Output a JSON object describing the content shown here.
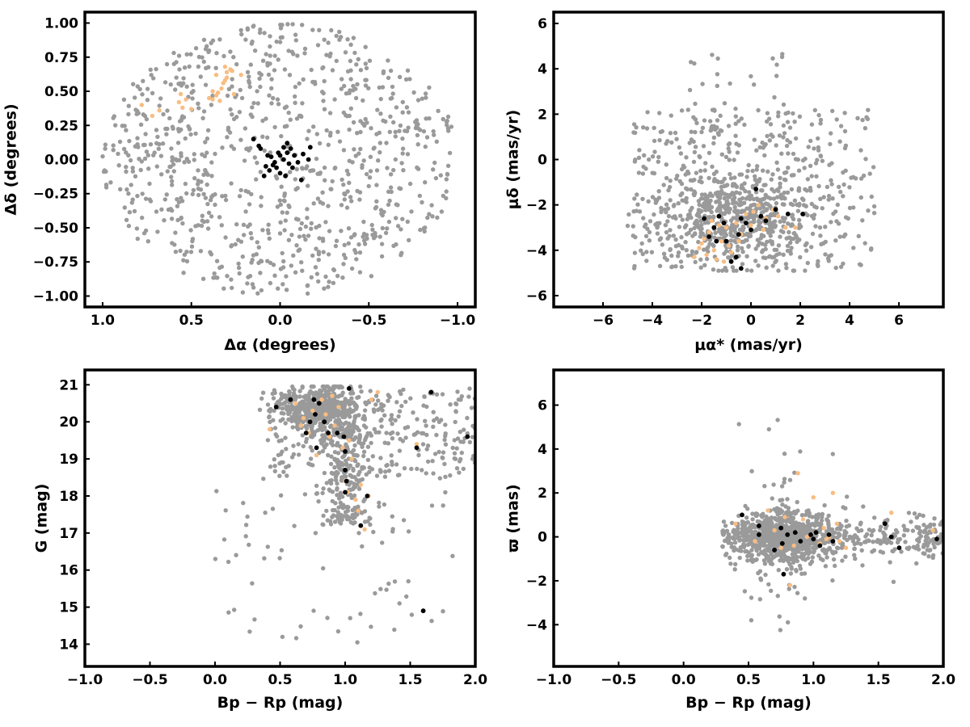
{
  "colors": {
    "field": "#9a9a9a",
    "group_orange": "#f8bd82",
    "group_black": "#000000"
  },
  "chart_data": [
    {
      "type": "scatter",
      "xlabel": "Δα (degrees)",
      "ylabel": "Δδ (degrees)",
      "xlim": [
        1.1,
        -1.1
      ],
      "ylim": [
        -1.08,
        1.08
      ],
      "x_reversed": true,
      "xticks": [
        1.0,
        0.5,
        0.0,
        -0.5,
        -1.0
      ],
      "yticks": [
        -1.0,
        -0.75,
        -0.5,
        -0.25,
        0.0,
        0.25,
        0.5,
        0.75,
        1.0
      ],
      "xtick_labels": [
        "1.0",
        "0.5",
        "0.0",
        "−0.5",
        "−1.0"
      ],
      "ytick_labels": [
        "−1.00",
        "−0.75",
        "−0.50",
        "−0.25",
        "0.00",
        "0.25",
        "0.50",
        "0.75",
        "1.00"
      ],
      "grid": false,
      "series": [
        {
          "color": "#9a9a9a",
          "distribution": "uniform disk",
          "center": [
            0,
            0
          ],
          "radius": 1.0,
          "count": 900
        },
        {
          "color": "#f8bd82",
          "points": [
            [
              0.78,
              0.4
            ],
            [
              0.72,
              0.32
            ],
            [
              0.68,
              0.36
            ],
            [
              0.57,
              0.42
            ],
            [
              0.55,
              0.38
            ],
            [
              0.53,
              0.44
            ],
            [
              0.5,
              0.37
            ],
            [
              0.56,
              0.48
            ],
            [
              0.4,
              0.45
            ],
            [
              0.38,
              0.5
            ],
            [
              0.36,
              0.47
            ],
            [
              0.34,
              0.43
            ],
            [
              0.32,
              0.56
            ],
            [
              0.3,
              0.6
            ],
            [
              0.28,
              0.66
            ],
            [
              0.3,
              0.64
            ],
            [
              0.36,
              0.62
            ],
            [
              0.26,
              0.48
            ],
            [
              0.22,
              0.62
            ],
            [
              0.38,
              0.44
            ],
            [
              0.35,
              0.49
            ],
            [
              0.33,
              0.52
            ],
            [
              0.31,
              0.58
            ],
            [
              0.27,
              0.65
            ],
            [
              0.31,
              0.68
            ]
          ]
        },
        {
          "color": "#000000",
          "points": [
            [
              0.15,
              0.15
            ],
            [
              0.12,
              0.1
            ],
            [
              0.11,
              0.08
            ],
            [
              0.05,
              0.02
            ],
            [
              0.03,
              -0.02
            ],
            [
              0.01,
              0.05
            ],
            [
              -0.02,
              0.0
            ],
            [
              -0.05,
              -0.03
            ],
            [
              0.08,
              -0.05
            ],
            [
              0.06,
              -0.08
            ],
            [
              0.0,
              -0.1
            ],
            [
              -0.03,
              -0.12
            ],
            [
              -0.06,
              0.08
            ],
            [
              -0.08,
              0.03
            ],
            [
              -0.1,
              -0.02
            ],
            [
              -0.13,
              0.04
            ],
            [
              -0.16,
              0.0
            ],
            [
              -0.12,
              -0.15
            ],
            [
              -0.17,
              0.09
            ],
            [
              -0.02,
              0.09
            ],
            [
              0.04,
              -0.04
            ],
            [
              0.07,
              0.03
            ],
            [
              -0.04,
              0.12
            ],
            [
              0.02,
              -0.06
            ],
            [
              0.09,
              -0.12
            ],
            [
              -0.07,
              -0.06
            ],
            [
              0.0,
              0.03
            ],
            [
              -0.04,
              0.05
            ]
          ]
        }
      ]
    },
    {
      "type": "scatter",
      "xlabel": "μα* (mas/yr)",
      "ylabel": "μδ (mas/yr)",
      "xlim": [
        -8,
        7.8
      ],
      "ylim": [
        -6.5,
        6.5
      ],
      "xticks": [
        -6,
        -4,
        -2,
        0,
        2,
        4,
        6
      ],
      "yticks": [
        -6,
        -4,
        -2,
        0,
        2,
        4,
        6
      ],
      "xtick_labels": [
        "−6",
        "−4",
        "−2",
        "0",
        "2",
        "4",
        "6"
      ],
      "ytick_labels": [
        "−6",
        "−4",
        "−2",
        "0",
        "2",
        "4",
        "6"
      ],
      "grid": false,
      "series": [
        {
          "color": "#9a9a9a",
          "distribution": "broad cloud",
          "x_range": [
            -5,
            5
          ],
          "y_range": [
            -4.9,
            4.9
          ],
          "concentration": [
            -0.5,
            -2.0
          ],
          "count": 1000
        },
        {
          "color": "#f8bd82",
          "points": [
            [
              -2.3,
              -4.3
            ],
            [
              -2.1,
              -3.9
            ],
            [
              -1.9,
              -3.5
            ],
            [
              -1.7,
              -3.2
            ],
            [
              -1.5,
              -4.0
            ],
            [
              -1.4,
              -4.4
            ],
            [
              -1.2,
              -3.6
            ],
            [
              -1.0,
              -3.0
            ],
            [
              -0.8,
              -4.1
            ],
            [
              -0.6,
              -2.8
            ],
            [
              -0.4,
              -3.3
            ],
            [
              -0.2,
              -2.4
            ],
            [
              0.0,
              -2.9
            ],
            [
              0.3,
              -2.0
            ],
            [
              0.6,
              -2.6
            ],
            [
              0.9,
              -2.2
            ],
            [
              1.1,
              -2.5
            ],
            [
              1.4,
              -3.0
            ],
            [
              1.8,
              -3.0
            ],
            [
              -1.8,
              -4.2
            ],
            [
              -2.0,
              -3.7
            ],
            [
              -1.3,
              -2.9
            ],
            [
              -0.9,
              -3.8
            ],
            [
              -0.5,
              -3.6
            ],
            [
              0.1,
              -2.3
            ],
            [
              -1.6,
              -2.7
            ],
            [
              -1.1,
              -4.5
            ],
            [
              0.5,
              -3.1
            ]
          ]
        },
        {
          "color": "#000000",
          "points": [
            [
              -1.9,
              -2.6
            ],
            [
              -1.7,
              -3.4
            ],
            [
              -1.5,
              -3.0
            ],
            [
              -1.3,
              -2.5
            ],
            [
              -1.1,
              -2.8
            ],
            [
              -1.0,
              -3.6
            ],
            [
              -0.8,
              -4.5
            ],
            [
              -0.6,
              -4.3
            ],
            [
              -0.5,
              -3.3
            ],
            [
              -0.4,
              -2.6
            ],
            [
              -0.2,
              -2.8
            ],
            [
              0.0,
              -3.1
            ],
            [
              0.2,
              -1.3
            ],
            [
              0.4,
              -2.5
            ],
            [
              0.6,
              -2.7
            ],
            [
              1.0,
              -2.2
            ],
            [
              1.5,
              -2.4
            ],
            [
              2.1,
              -2.4
            ],
            [
              -0.4,
              -4.8
            ],
            [
              -1.4,
              -3.6
            ]
          ]
        }
      ]
    },
    {
      "type": "scatter",
      "xlabel": "Bp − Rp (mag)",
      "ylabel": "G (mag)",
      "xlim": [
        -1.0,
        2.0
      ],
      "ylim": [
        13.4,
        21.4
      ],
      "xticks": [
        -1.0,
        -0.5,
        0.0,
        0.5,
        1.0,
        1.5,
        2.0
      ],
      "yticks": [
        14,
        15,
        16,
        17,
        18,
        19,
        20,
        21
      ],
      "xtick_labels": [
        "−1.0",
        "−0.5",
        "0.0",
        "0.5",
        "1.0",
        "1.5",
        "2.0"
      ],
      "ytick_labels": [
        "14",
        "15",
        "16",
        "17",
        "18",
        "19",
        "20",
        "21"
      ],
      "grid": false,
      "series": [
        {
          "color": "#9a9a9a",
          "distribution": "colour-magnitude diagram",
          "concentration": [
            0.8,
            20.3
          ],
          "count": 1100
        },
        {
          "color": "#f8bd82",
          "points": [
            [
              0.42,
              19.8
            ],
            [
              0.62,
              20.5
            ],
            [
              0.68,
              20.1
            ],
            [
              0.72,
              19.7
            ],
            [
              0.78,
              19.1
            ],
            [
              0.82,
              20.6
            ],
            [
              0.85,
              20.2
            ],
            [
              0.88,
              19.6
            ],
            [
              0.92,
              19.9
            ],
            [
              0.95,
              20.4
            ],
            [
              0.98,
              19.3
            ],
            [
              1.0,
              18.4
            ],
            [
              1.02,
              18.1
            ],
            [
              1.05,
              19.0
            ],
            [
              1.08,
              17.9
            ],
            [
              1.1,
              17.6
            ],
            [
              1.12,
              18.3
            ],
            [
              1.15,
              17.1
            ],
            [
              1.18,
              18.0
            ],
            [
              1.2,
              20.6
            ],
            [
              1.25,
              20.8
            ],
            [
              1.55,
              19.4
            ],
            [
              0.75,
              20.3
            ],
            [
              0.66,
              19.9
            ],
            [
              0.9,
              20.7
            ],
            [
              1.03,
              19.5
            ]
          ]
        },
        {
          "color": "#000000",
          "points": [
            [
              0.47,
              20.4
            ],
            [
              0.58,
              20.6
            ],
            [
              0.7,
              19.7
            ],
            [
              0.73,
              20.0
            ],
            [
              0.76,
              20.6
            ],
            [
              0.77,
              20.2
            ],
            [
              0.78,
              19.3
            ],
            [
              0.8,
              20.5
            ],
            [
              0.84,
              20.0
            ],
            [
              0.87,
              19.7
            ],
            [
              0.94,
              19.7
            ],
            [
              0.99,
              19.6
            ],
            [
              1.0,
              18.7
            ],
            [
              1.0,
              19.2
            ],
            [
              1.03,
              20.9
            ],
            [
              1.0,
              18.1
            ],
            [
              1.12,
              17.2
            ],
            [
              1.17,
              18.0
            ],
            [
              1.55,
              19.3
            ],
            [
              1.6,
              14.9
            ],
            [
              1.66,
              20.8
            ],
            [
              1.94,
              19.6
            ],
            [
              1.01,
              18.4
            ]
          ]
        }
      ]
    },
    {
      "type": "scatter",
      "xlabel": "Bp − Rp (mag)",
      "ylabel": "ϖ (mas)",
      "xlim": [
        -1.0,
        2.0
      ],
      "ylim": [
        -5.9,
        7.6
      ],
      "xticks": [
        -1.0,
        -0.5,
        0.0,
        0.5,
        1.0,
        1.5,
        2.0
      ],
      "yticks": [
        -4,
        -2,
        0,
        2,
        4,
        6
      ],
      "xtick_labels": [
        "−1.0",
        "−0.5",
        "0.0",
        "0.5",
        "1.0",
        "1.5",
        "2.0"
      ],
      "ytick_labels": [
        "−4",
        "−2",
        "0",
        "2",
        "4",
        "6"
      ],
      "grid": false,
      "series": [
        {
          "color": "#9a9a9a",
          "distribution": "horizontal band",
          "concentration": [
            0.8,
            0.0
          ],
          "count": 1100
        },
        {
          "color": "#f8bd82",
          "points": [
            [
              0.4,
              0.6
            ],
            [
              0.55,
              -0.2
            ],
            [
              0.65,
              1.2
            ],
            [
              0.7,
              0.3
            ],
            [
              0.75,
              -0.5
            ],
            [
              0.82,
              -2.2
            ],
            [
              0.88,
              2.9
            ],
            [
              0.92,
              0.8
            ],
            [
              0.95,
              0.0
            ],
            [
              1.0,
              1.8
            ],
            [
              1.02,
              0.2
            ],
            [
              1.05,
              -0.3
            ],
            [
              1.08,
              0.4
            ],
            [
              1.1,
              -0.1
            ],
            [
              1.12,
              0.0
            ],
            [
              1.15,
              2.0
            ],
            [
              1.18,
              0.6
            ],
            [
              1.2,
              -0.2
            ],
            [
              1.25,
              -0.5
            ],
            [
              1.6,
              1.1
            ],
            [
              1.92,
              0.3
            ],
            [
              0.85,
              -0.4
            ],
            [
              0.78,
              0.9
            ]
          ]
        },
        {
          "color": "#000000",
          "points": [
            [
              0.45,
              1.0
            ],
            [
              0.58,
              0.5
            ],
            [
              0.58,
              0.1
            ],
            [
              0.7,
              -0.6
            ],
            [
              0.75,
              0.4
            ],
            [
              0.76,
              -0.3
            ],
            [
              0.77,
              -1.7
            ],
            [
              0.8,
              0.1
            ],
            [
              0.86,
              0.2
            ],
            [
              0.9,
              -0.2
            ],
            [
              0.98,
              0.1
            ],
            [
              1.0,
              -0.1
            ],
            [
              1.02,
              0.2
            ],
            [
              1.05,
              -0.4
            ],
            [
              1.12,
              0.1
            ],
            [
              1.15,
              -0.2
            ],
            [
              1.55,
              0.6
            ],
            [
              1.6,
              0.0
            ],
            [
              1.66,
              -0.5
            ],
            [
              1.95,
              -0.1
            ]
          ]
        }
      ]
    }
  ]
}
